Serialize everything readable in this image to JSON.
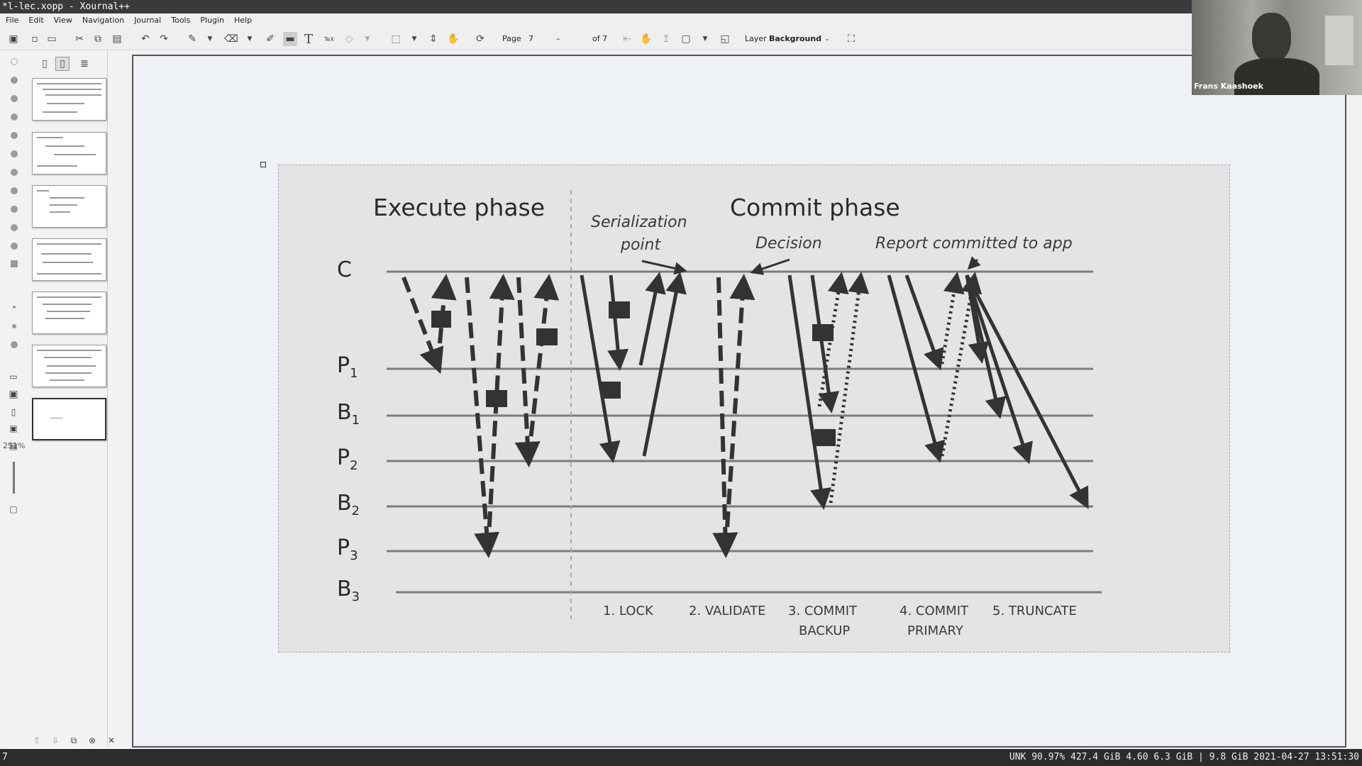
{
  "window": {
    "title": "*l-lec.xopp - Xournal++"
  },
  "menu": [
    "File",
    "Edit",
    "View",
    "Navigation",
    "Journal",
    "Tools",
    "Plugin",
    "Help"
  ],
  "toolbar": {
    "page_label": "Page",
    "page_number": "7",
    "page_total": "of 7",
    "layer_label": "Layer",
    "layer_value": "Background"
  },
  "sidebar": {
    "zoom": "251%",
    "pages": 7,
    "selected_page": 7
  },
  "slide": {
    "execute_title": "Execute phase",
    "commit_title": "Commit phase",
    "serialization": "Serialization",
    "serialization2": "point",
    "decision": "Decision",
    "report": "Report committed to app",
    "rows": [
      {
        "label": "C",
        "sub": ""
      },
      {
        "label": "P",
        "sub": "1"
      },
      {
        "label": "B",
        "sub": "1"
      },
      {
        "label": "P",
        "sub": "2"
      },
      {
        "label": "B",
        "sub": "2"
      },
      {
        "label": "P",
        "sub": "3"
      },
      {
        "label": "B",
        "sub": "3"
      }
    ],
    "steps": [
      "1. LOCK",
      "2. VALIDATE",
      "3. COMMIT",
      "BACKUP",
      "4. COMMIT",
      "PRIMARY",
      "5. TRUNCATE"
    ]
  },
  "video": {
    "name": "Frans Kaashoek"
  },
  "status": {
    "left": "7",
    "right": "UNK 90.97% 427.4 GiB 4.60 6.3 GiB | 9.8 GiB 2021-04-27 13:51:30"
  }
}
